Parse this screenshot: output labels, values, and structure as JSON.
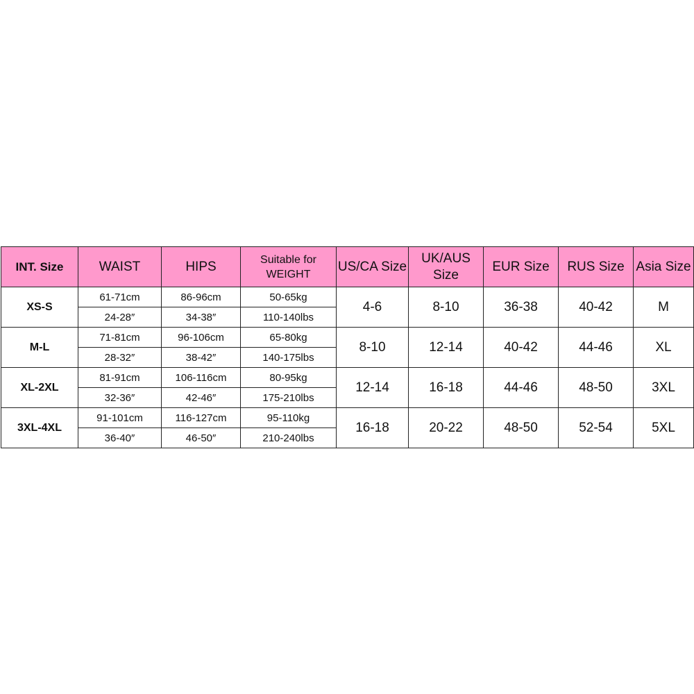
{
  "header_color": "#ff99cc",
  "headers": [
    "INT. Size",
    "WAIST",
    "HIPS",
    "Suitable for WEIGHT",
    "US/CA Size",
    "UK/AUS Size",
    "EUR Size",
    "RUS Size",
    "Asia Size"
  ],
  "rows": [
    {
      "int": "XS-S",
      "waist_cm": "61-71cm",
      "waist_in": "24-28″",
      "hips_cm": "86-96cm",
      "hips_in": "34-38″",
      "weight_kg": "50-65kg",
      "weight_lbs": "110-140lbs",
      "us": "4-6",
      "uk": "8-10",
      "eur": "36-38",
      "rus": "40-42",
      "asia": "M"
    },
    {
      "int": "M-L",
      "waist_cm": "71-81cm",
      "waist_in": "28-32″",
      "hips_cm": "96-106cm",
      "hips_in": "38-42″",
      "weight_kg": "65-80kg",
      "weight_lbs": "140-175lbs",
      "us": "8-10",
      "uk": "12-14",
      "eur": "40-42",
      "rus": "44-46",
      "asia": "XL"
    },
    {
      "int": "XL-2XL",
      "waist_cm": "81-91cm",
      "waist_in": "32-36″",
      "hips_cm": "106-116cm",
      "hips_in": "42-46″",
      "weight_kg": "80-95kg",
      "weight_lbs": "175-210lbs",
      "us": "12-14",
      "uk": "16-18",
      "eur": "44-46",
      "rus": "48-50",
      "asia": "3XL"
    },
    {
      "int": "3XL-4XL",
      "waist_cm": "91-101cm",
      "waist_in": "36-40″",
      "hips_cm": "116-127cm",
      "hips_in": "46-50″",
      "weight_kg": "95-110kg",
      "weight_lbs": "210-240lbs",
      "us": "16-18",
      "uk": "20-22",
      "eur": "48-50",
      "rus": "52-54",
      "asia": "5XL"
    }
  ]
}
